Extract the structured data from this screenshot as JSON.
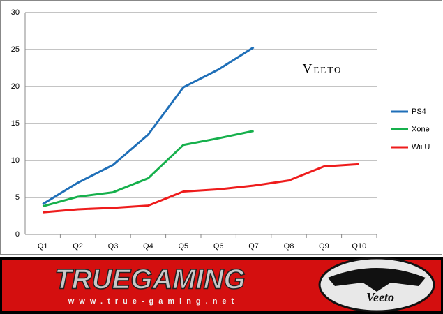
{
  "chart_data": {
    "type": "line",
    "annotation": "Veeto",
    "categories": [
      "Q1",
      "Q2",
      "Q3",
      "Q4",
      "Q5",
      "Q6",
      "Q7",
      "Q8",
      "Q9",
      "Q10"
    ],
    "series": [
      {
        "name": "PS4",
        "color": "#1f6fb8",
        "values": [
          4.1,
          7.0,
          9.4,
          13.5,
          19.9,
          22.3,
          25.3,
          null,
          null,
          null
        ]
      },
      {
        "name": "Xone",
        "color": "#16b04c",
        "values": [
          3.8,
          5.1,
          5.7,
          7.6,
          12.1,
          13.0,
          14.0,
          null,
          null,
          null
        ]
      },
      {
        "name": "Wii U",
        "color": "#ee1c1c",
        "values": [
          3.0,
          3.4,
          3.6,
          3.9,
          5.8,
          6.1,
          6.6,
          7.3,
          9.2,
          9.5
        ]
      }
    ],
    "ylim": [
      0,
      30
    ],
    "yticks": [
      0,
      5,
      10,
      15,
      20,
      25,
      30
    ],
    "grid": true,
    "legend": "right"
  },
  "banner": {
    "title": "TRUEGAMING",
    "url": "www.true-gaming.net",
    "logo_text": "Veeto"
  }
}
